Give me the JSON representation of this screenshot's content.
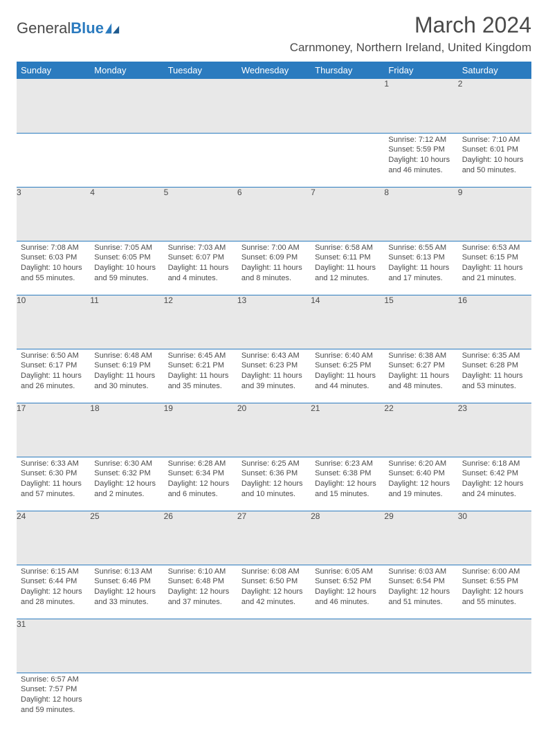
{
  "brand": {
    "part1": "General",
    "part2": "Blue"
  },
  "title": "March 2024",
  "location": "Carnmoney, Northern Ireland, United Kingdom",
  "colors": {
    "header_bg": "#2b7bbf",
    "header_fg": "#ffffff",
    "daynum_bg": "#e8e8e8",
    "text": "#4a4a4a",
    "rule": "#2b7bbf"
  },
  "weekdays": [
    "Sunday",
    "Monday",
    "Tuesday",
    "Wednesday",
    "Thursday",
    "Friday",
    "Saturday"
  ],
  "weeks": [
    [
      null,
      null,
      null,
      null,
      null,
      {
        "n": "1",
        "sr": "Sunrise: 7:12 AM",
        "ss": "Sunset: 5:59 PM",
        "d1": "Daylight: 10 hours",
        "d2": "and 46 minutes."
      },
      {
        "n": "2",
        "sr": "Sunrise: 7:10 AM",
        "ss": "Sunset: 6:01 PM",
        "d1": "Daylight: 10 hours",
        "d2": "and 50 minutes."
      }
    ],
    [
      {
        "n": "3",
        "sr": "Sunrise: 7:08 AM",
        "ss": "Sunset: 6:03 PM",
        "d1": "Daylight: 10 hours",
        "d2": "and 55 minutes."
      },
      {
        "n": "4",
        "sr": "Sunrise: 7:05 AM",
        "ss": "Sunset: 6:05 PM",
        "d1": "Daylight: 10 hours",
        "d2": "and 59 minutes."
      },
      {
        "n": "5",
        "sr": "Sunrise: 7:03 AM",
        "ss": "Sunset: 6:07 PM",
        "d1": "Daylight: 11 hours",
        "d2": "and 4 minutes."
      },
      {
        "n": "6",
        "sr": "Sunrise: 7:00 AM",
        "ss": "Sunset: 6:09 PM",
        "d1": "Daylight: 11 hours",
        "d2": "and 8 minutes."
      },
      {
        "n": "7",
        "sr": "Sunrise: 6:58 AM",
        "ss": "Sunset: 6:11 PM",
        "d1": "Daylight: 11 hours",
        "d2": "and 12 minutes."
      },
      {
        "n": "8",
        "sr": "Sunrise: 6:55 AM",
        "ss": "Sunset: 6:13 PM",
        "d1": "Daylight: 11 hours",
        "d2": "and 17 minutes."
      },
      {
        "n": "9",
        "sr": "Sunrise: 6:53 AM",
        "ss": "Sunset: 6:15 PM",
        "d1": "Daylight: 11 hours",
        "d2": "and 21 minutes."
      }
    ],
    [
      {
        "n": "10",
        "sr": "Sunrise: 6:50 AM",
        "ss": "Sunset: 6:17 PM",
        "d1": "Daylight: 11 hours",
        "d2": "and 26 minutes."
      },
      {
        "n": "11",
        "sr": "Sunrise: 6:48 AM",
        "ss": "Sunset: 6:19 PM",
        "d1": "Daylight: 11 hours",
        "d2": "and 30 minutes."
      },
      {
        "n": "12",
        "sr": "Sunrise: 6:45 AM",
        "ss": "Sunset: 6:21 PM",
        "d1": "Daylight: 11 hours",
        "d2": "and 35 minutes."
      },
      {
        "n": "13",
        "sr": "Sunrise: 6:43 AM",
        "ss": "Sunset: 6:23 PM",
        "d1": "Daylight: 11 hours",
        "d2": "and 39 minutes."
      },
      {
        "n": "14",
        "sr": "Sunrise: 6:40 AM",
        "ss": "Sunset: 6:25 PM",
        "d1": "Daylight: 11 hours",
        "d2": "and 44 minutes."
      },
      {
        "n": "15",
        "sr": "Sunrise: 6:38 AM",
        "ss": "Sunset: 6:27 PM",
        "d1": "Daylight: 11 hours",
        "d2": "and 48 minutes."
      },
      {
        "n": "16",
        "sr": "Sunrise: 6:35 AM",
        "ss": "Sunset: 6:28 PM",
        "d1": "Daylight: 11 hours",
        "d2": "and 53 minutes."
      }
    ],
    [
      {
        "n": "17",
        "sr": "Sunrise: 6:33 AM",
        "ss": "Sunset: 6:30 PM",
        "d1": "Daylight: 11 hours",
        "d2": "and 57 minutes."
      },
      {
        "n": "18",
        "sr": "Sunrise: 6:30 AM",
        "ss": "Sunset: 6:32 PM",
        "d1": "Daylight: 12 hours",
        "d2": "and 2 minutes."
      },
      {
        "n": "19",
        "sr": "Sunrise: 6:28 AM",
        "ss": "Sunset: 6:34 PM",
        "d1": "Daylight: 12 hours",
        "d2": "and 6 minutes."
      },
      {
        "n": "20",
        "sr": "Sunrise: 6:25 AM",
        "ss": "Sunset: 6:36 PM",
        "d1": "Daylight: 12 hours",
        "d2": "and 10 minutes."
      },
      {
        "n": "21",
        "sr": "Sunrise: 6:23 AM",
        "ss": "Sunset: 6:38 PM",
        "d1": "Daylight: 12 hours",
        "d2": "and 15 minutes."
      },
      {
        "n": "22",
        "sr": "Sunrise: 6:20 AM",
        "ss": "Sunset: 6:40 PM",
        "d1": "Daylight: 12 hours",
        "d2": "and 19 minutes."
      },
      {
        "n": "23",
        "sr": "Sunrise: 6:18 AM",
        "ss": "Sunset: 6:42 PM",
        "d1": "Daylight: 12 hours",
        "d2": "and 24 minutes."
      }
    ],
    [
      {
        "n": "24",
        "sr": "Sunrise: 6:15 AM",
        "ss": "Sunset: 6:44 PM",
        "d1": "Daylight: 12 hours",
        "d2": "and 28 minutes."
      },
      {
        "n": "25",
        "sr": "Sunrise: 6:13 AM",
        "ss": "Sunset: 6:46 PM",
        "d1": "Daylight: 12 hours",
        "d2": "and 33 minutes."
      },
      {
        "n": "26",
        "sr": "Sunrise: 6:10 AM",
        "ss": "Sunset: 6:48 PM",
        "d1": "Daylight: 12 hours",
        "d2": "and 37 minutes."
      },
      {
        "n": "27",
        "sr": "Sunrise: 6:08 AM",
        "ss": "Sunset: 6:50 PM",
        "d1": "Daylight: 12 hours",
        "d2": "and 42 minutes."
      },
      {
        "n": "28",
        "sr": "Sunrise: 6:05 AM",
        "ss": "Sunset: 6:52 PM",
        "d1": "Daylight: 12 hours",
        "d2": "and 46 minutes."
      },
      {
        "n": "29",
        "sr": "Sunrise: 6:03 AM",
        "ss": "Sunset: 6:54 PM",
        "d1": "Daylight: 12 hours",
        "d2": "and 51 minutes."
      },
      {
        "n": "30",
        "sr": "Sunrise: 6:00 AM",
        "ss": "Sunset: 6:55 PM",
        "d1": "Daylight: 12 hours",
        "d2": "and 55 minutes."
      }
    ],
    [
      {
        "n": "31",
        "sr": "Sunrise: 6:57 AM",
        "ss": "Sunset: 7:57 PM",
        "d1": "Daylight: 12 hours",
        "d2": "and 59 minutes."
      },
      null,
      null,
      null,
      null,
      null,
      null
    ]
  ]
}
